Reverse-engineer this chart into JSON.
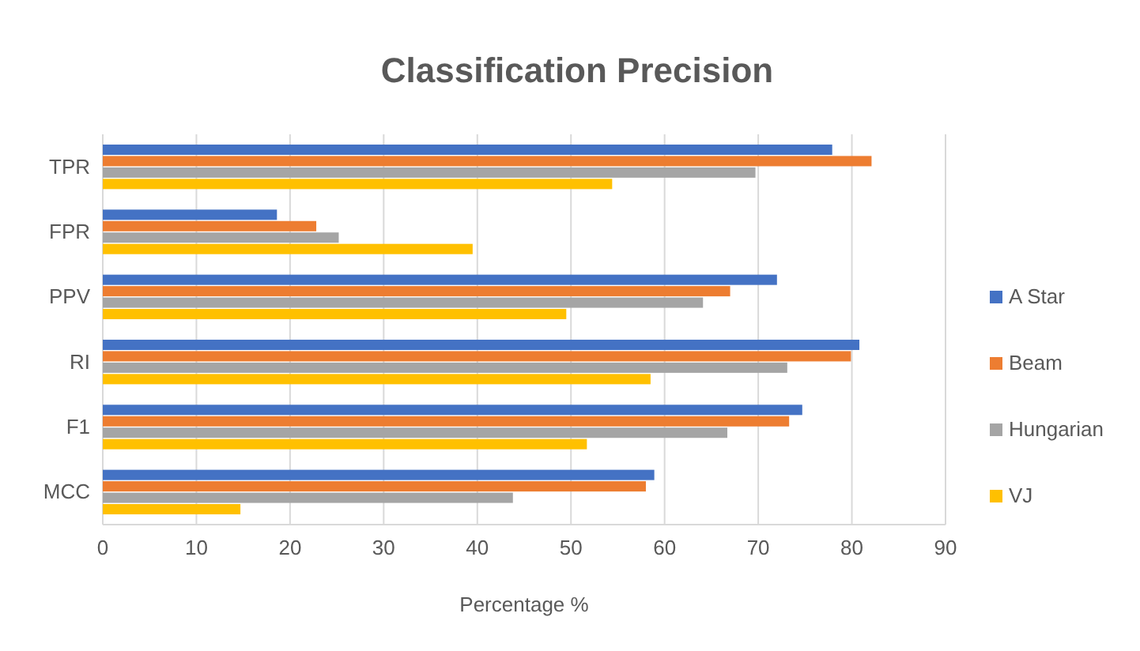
{
  "chart_data": {
    "type": "bar",
    "orientation": "horizontal",
    "title": "Classification Precision",
    "xlabel": "Percentage %",
    "categories": [
      "TPR",
      "FPR",
      "PPV",
      "RI",
      "F1",
      "MCC"
    ],
    "series": [
      {
        "name": "A Star",
        "color": "#4472c4",
        "values": [
          77.9,
          18.6,
          72.0,
          80.8,
          74.7,
          58.9
        ]
      },
      {
        "name": "Beam",
        "color": "#ed7d31",
        "values": [
          82.1,
          22.8,
          67.0,
          79.9,
          73.3,
          58.0
        ]
      },
      {
        "name": "Hungarian",
        "color": "#a5a5a5",
        "values": [
          69.7,
          25.2,
          64.1,
          73.1,
          66.7,
          43.8
        ]
      },
      {
        "name": "VJ",
        "color": "#ffc000",
        "values": [
          54.4,
          39.5,
          49.5,
          58.5,
          51.7,
          14.7
        ]
      }
    ],
    "xlim": [
      0,
      90
    ],
    "xticks": [
      0,
      10,
      20,
      30,
      40,
      50,
      60,
      70,
      80,
      90
    ],
    "grid": "x",
    "legend": "right"
  }
}
